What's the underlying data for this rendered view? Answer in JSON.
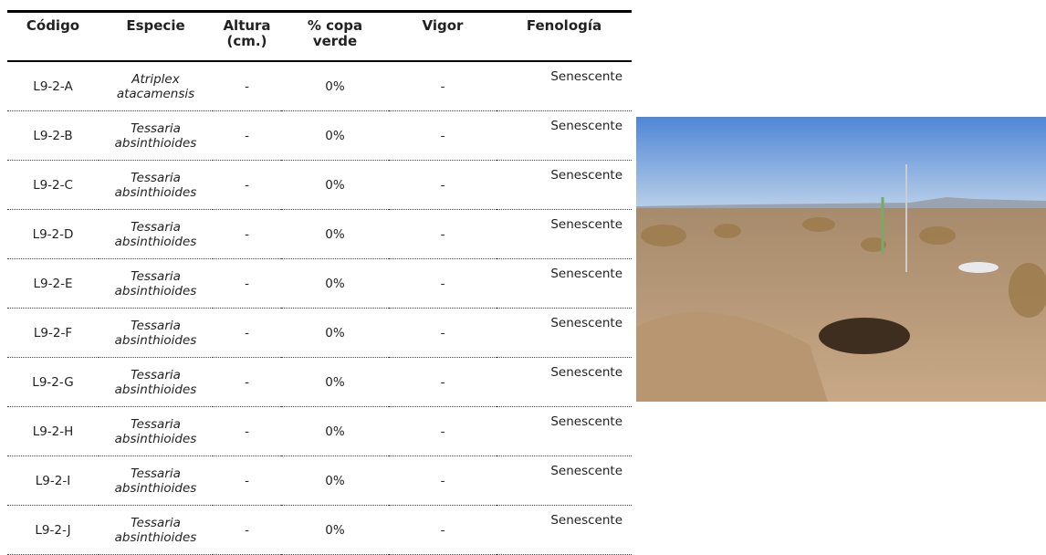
{
  "table": {
    "headers": [
      "Código",
      "Especie",
      "Altura (cm.)",
      "% copa verde",
      "Vigor",
      "Fenología"
    ],
    "rows": [
      [
        "L9-2-A",
        "Atriplex atacamensis",
        "-",
        "0%",
        "-",
        "Senescente"
      ],
      [
        "L9-2-B",
        "Tessaria absinthioides",
        "-",
        "0%",
        "-",
        "Senescente"
      ],
      [
        "L9-2-C",
        "Tessaria absinthioides",
        "-",
        "0%",
        "-",
        "Senescente"
      ],
      [
        "L9-2-D",
        "Tessaria absinthioides",
        "-",
        "0%",
        "-",
        "Senescente"
      ],
      [
        "L9-2-E",
        "Tessaria absinthioides",
        "-",
        "0%",
        "-",
        "Senescente"
      ],
      [
        "L9-2-F",
        "Tessaria absinthioides",
        "-",
        "0%",
        "-",
        "Senescente"
      ],
      [
        "L9-2-G",
        "Tessaria absinthioides",
        "-",
        "0%",
        "-",
        "Senescente"
      ],
      [
        "L9-2-H",
        "Tessaria absinthioides",
        "-",
        "0%",
        "-",
        "Senescente"
      ],
      [
        "L9-2-I",
        "Tessaria absinthioides",
        "-",
        "0%",
        "-",
        "Senescente"
      ],
      [
        "L9-2-J",
        "Tessaria absinthioides",
        "-",
        "0%",
        "-",
        "Senescente"
      ]
    ]
  }
}
